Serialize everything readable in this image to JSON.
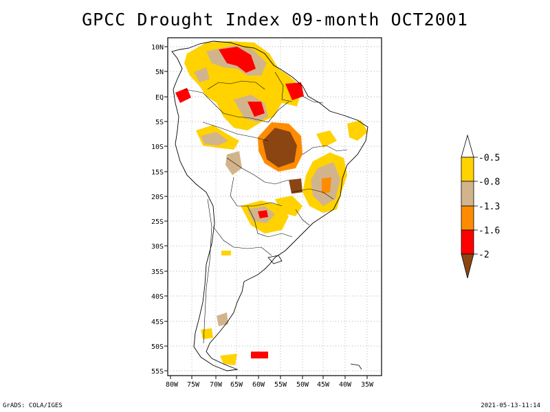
{
  "title": "GPCC Drought Index 09-month OCT2001",
  "x_ticks": [
    "80W",
    "75W",
    "70W",
    "65W",
    "60W",
    "55W",
    "50W",
    "45W",
    "40W",
    "35W"
  ],
  "y_ticks": [
    "10N",
    "5N",
    "EQ",
    "5S",
    "10S",
    "15S",
    "20S",
    "25S",
    "30S",
    "35S",
    "40S",
    "45S",
    "50S",
    "55S"
  ],
  "legend": {
    "labels": [
      "-0.5",
      "-0.8",
      "-1.3",
      "-1.6",
      "-2"
    ],
    "colors": [
      "#ffffff",
      "#ffd200",
      "#d2b48c",
      "#ff8c00",
      "#ff0000",
      "#8b4513"
    ]
  },
  "footer": {
    "left": "GrADS: COLA/IGES",
    "right": "2021-05-13-11:14"
  }
}
